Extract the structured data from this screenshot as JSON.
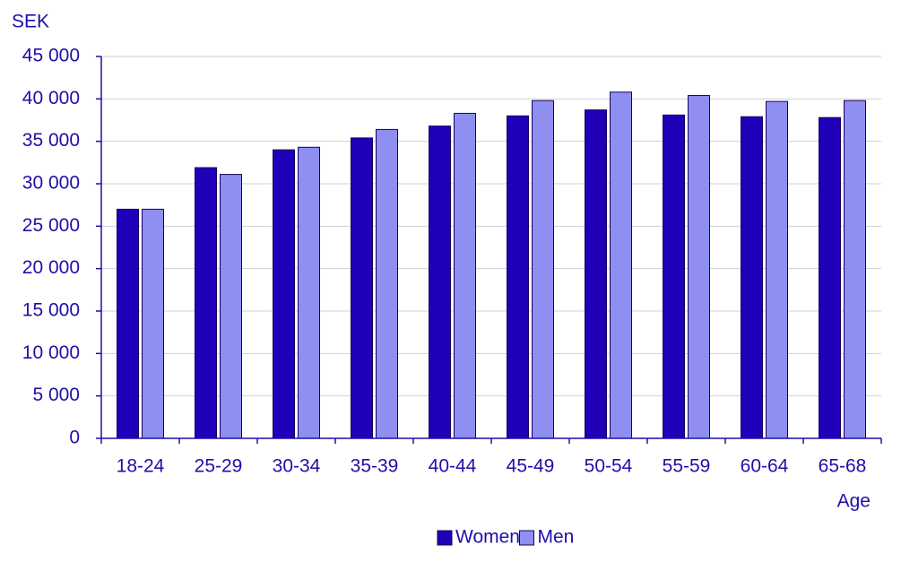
{
  "chart_data": {
    "type": "bar",
    "y_axis_label": "SEK",
    "x_axis_label": "Age",
    "categories": [
      "18-24",
      "25-29",
      "30-34",
      "35-39",
      "40-44",
      "45-49",
      "50-54",
      "55-59",
      "60-64",
      "65-68"
    ],
    "series": [
      {
        "name": "Women",
        "color": "#1f00b8",
        "values": [
          27000,
          31900,
          34000,
          35400,
          36800,
          38000,
          38700,
          38100,
          37900,
          37800
        ]
      },
      {
        "name": "Men",
        "color": "#8f8ff2",
        "values": [
          27000,
          31100,
          34300,
          36400,
          38300,
          39800,
          40800,
          40400,
          39700,
          39800
        ]
      }
    ],
    "ylim": [
      0,
      45000
    ],
    "yticks": [
      0,
      {
        "value": 5000,
        "label": "5 000"
      },
      {
        "value": 10000,
        "label": "10 000"
      },
      {
        "value": 15000,
        "label": "15 000"
      },
      {
        "value": 20000,
        "label": "20 000"
      },
      {
        "value": 25000,
        "label": "25 000"
      },
      {
        "value": 30000,
        "label": "30 000"
      },
      {
        "value": 35000,
        "label": "35 000"
      },
      {
        "value": 40000,
        "label": "40 000"
      },
      {
        "value": 45000,
        "label": "45 000"
      }
    ],
    "grid": true,
    "legend": "bottom"
  }
}
